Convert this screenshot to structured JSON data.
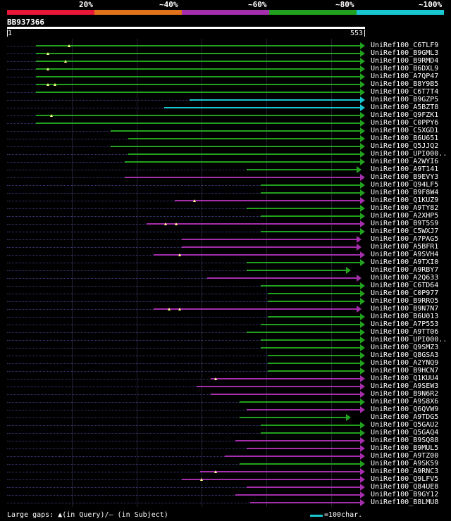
{
  "colors": {
    "red": "#e8173a",
    "orange": "#e0731a",
    "purple": "#a42eab",
    "green": "#22a11e",
    "cyan": "#19c7d2"
  },
  "header": {
    "percent_labels": [
      "20%",
      "~40%",
      "~60%",
      "~80%",
      "~100%"
    ],
    "query_id": "BB937366",
    "ruler_start": "1",
    "ruler_end": "553"
  },
  "hits": [
    {
      "name": "UniRef100_C6TLF9",
      "start": 0.08,
      "end": 1.0,
      "color": "green",
      "gaps": [
        0.17
      ]
    },
    {
      "name": "UniRef100_B9GML3",
      "start": 0.08,
      "end": 1.0,
      "color": "green",
      "gaps": [
        0.11
      ]
    },
    {
      "name": "UniRef100_B9RMD4",
      "start": 0.08,
      "end": 1.0,
      "color": "green",
      "gaps": [
        0.16
      ]
    },
    {
      "name": "UniRef100_B6DXL9",
      "start": 0.08,
      "end": 1.0,
      "color": "green",
      "gaps": [
        0.11
      ]
    },
    {
      "name": "UniRef100_A7QP47",
      "start": 0.08,
      "end": 1.0,
      "color": "green",
      "gaps": []
    },
    {
      "name": "UniRef100_B8Y9B5",
      "start": 0.08,
      "end": 1.0,
      "color": "green",
      "gaps": [
        0.11,
        0.13
      ]
    },
    {
      "name": "UniRef100_C6T7T4",
      "start": 0.08,
      "end": 1.0,
      "color": "green",
      "gaps": []
    },
    {
      "name": "UniRef100_B9GZP5",
      "start": 0.51,
      "end": 1.0,
      "color": "cyan",
      "gaps": []
    },
    {
      "name": "UniRef100_A5BZT8",
      "start": 0.44,
      "end": 1.0,
      "color": "cyan",
      "gaps": []
    },
    {
      "name": "UniRef100_Q9FZK1",
      "start": 0.08,
      "end": 1.0,
      "color": "green",
      "gaps": [
        0.12
      ]
    },
    {
      "name": "UniRef100_C0PPY6",
      "start": 0.08,
      "end": 1.0,
      "color": "green",
      "gaps": []
    },
    {
      "name": "UniRef100_C5XGD1",
      "start": 0.29,
      "end": 1.0,
      "color": "green",
      "gaps": []
    },
    {
      "name": "UniRef100_B6U651",
      "start": 0.34,
      "end": 1.0,
      "color": "green",
      "gaps": []
    },
    {
      "name": "UniRef100_Q5JJQ2",
      "start": 0.29,
      "end": 1.0,
      "color": "green",
      "gaps": []
    },
    {
      "name": "UniRef100_UPI000..",
      "start": 0.34,
      "end": 1.0,
      "color": "green",
      "gaps": []
    },
    {
      "name": "UniRef100_A2WYI6",
      "start": 0.33,
      "end": 1.0,
      "color": "green",
      "gaps": []
    },
    {
      "name": "UniRef100_A9T141",
      "start": 0.67,
      "end": 0.99,
      "color": "green",
      "gaps": []
    },
    {
      "name": "UniRef100_B9EVY3",
      "start": 0.33,
      "end": 1.0,
      "color": "purple",
      "gaps": []
    },
    {
      "name": "UniRef100_Q94LF5",
      "start": 0.71,
      "end": 1.0,
      "color": "green",
      "gaps": []
    },
    {
      "name": "UniRef100_B9F8W4",
      "start": 0.71,
      "end": 1.0,
      "color": "green",
      "gaps": []
    },
    {
      "name": "UniRef100_Q1KUZ9",
      "start": 0.47,
      "end": 1.0,
      "color": "purple",
      "gaps": [
        0.52
      ]
    },
    {
      "name": "UniRef100_A9TY82",
      "start": 0.67,
      "end": 1.0,
      "color": "green",
      "gaps": []
    },
    {
      "name": "UniRef100_A2XHP5",
      "start": 0.71,
      "end": 1.0,
      "color": "green",
      "gaps": []
    },
    {
      "name": "UniRef100_B9T5S9",
      "start": 0.39,
      "end": 1.0,
      "color": "purple",
      "gaps": [
        0.44,
        0.47
      ]
    },
    {
      "name": "UniRef100_C5WXJ7",
      "start": 0.71,
      "end": 1.0,
      "color": "green",
      "gaps": []
    },
    {
      "name": "UniRef100_A7PAG5",
      "start": 0.49,
      "end": 0.99,
      "color": "purple",
      "gaps": []
    },
    {
      "name": "UniRef100_A5BFR1",
      "start": 0.49,
      "end": 0.99,
      "color": "purple",
      "gaps": []
    },
    {
      "name": "UniRef100_A9SVH4",
      "start": 0.41,
      "end": 1.0,
      "color": "purple",
      "gaps": [
        0.48
      ]
    },
    {
      "name": "UniRef100_A9TXI0",
      "start": 0.67,
      "end": 1.0,
      "color": "green",
      "gaps": []
    },
    {
      "name": "UniRef100_A9RBY7",
      "start": 0.67,
      "end": 0.96,
      "color": "green",
      "gaps": []
    },
    {
      "name": "UniRef100_A2Q633",
      "start": 0.56,
      "end": 0.99,
      "color": "purple",
      "gaps": []
    },
    {
      "name": "UniRef100_C6TD64",
      "start": 0.71,
      "end": 1.0,
      "color": "green",
      "gaps": []
    },
    {
      "name": "UniRef100_C0P977",
      "start": 0.73,
      "end": 1.0,
      "color": "green",
      "gaps": []
    },
    {
      "name": "UniRef100_B9RRO5",
      "start": 0.73,
      "end": 1.0,
      "color": "green",
      "gaps": []
    },
    {
      "name": "UniRef100_B9N7N7",
      "start": 0.41,
      "end": 0.99,
      "color": "purple",
      "gaps": [
        0.45,
        0.48
      ]
    },
    {
      "name": "UniRef100_B6U013",
      "start": 0.73,
      "end": 1.0,
      "color": "green",
      "gaps": []
    },
    {
      "name": "UniRef100_A7P553",
      "start": 0.71,
      "end": 1.0,
      "color": "green",
      "gaps": []
    },
    {
      "name": "UniRef100_A9TT06",
      "start": 0.67,
      "end": 1.0,
      "color": "green",
      "gaps": []
    },
    {
      "name": "UniRef100_UPI000..",
      "start": 0.71,
      "end": 1.0,
      "color": "green",
      "gaps": []
    },
    {
      "name": "UniRef100_Q9SMZ3",
      "start": 0.71,
      "end": 1.0,
      "color": "green",
      "gaps": []
    },
    {
      "name": "UniRef100_Q8GSA3",
      "start": 0.73,
      "end": 1.0,
      "color": "green",
      "gaps": []
    },
    {
      "name": "UniRef100_A2YNQ9",
      "start": 0.73,
      "end": 1.0,
      "color": "green",
      "gaps": []
    },
    {
      "name": "UniRef100_B9HCN7",
      "start": 0.73,
      "end": 1.0,
      "color": "green",
      "gaps": []
    },
    {
      "name": "UniRef100_Q1KUU4",
      "start": 0.57,
      "end": 1.0,
      "color": "purple",
      "gaps": [
        0.58
      ]
    },
    {
      "name": "UniRef100_A9SEW3",
      "start": 0.53,
      "end": 1.0,
      "color": "purple",
      "gaps": []
    },
    {
      "name": "UniRef100_B9N6R2",
      "start": 0.57,
      "end": 1.0,
      "color": "purple",
      "gaps": []
    },
    {
      "name": "UniRef100_A9S8X6",
      "start": 0.65,
      "end": 1.0,
      "color": "green",
      "gaps": []
    },
    {
      "name": "UniRef100_Q6QVW9",
      "start": 0.67,
      "end": 1.0,
      "color": "purple",
      "gaps": []
    },
    {
      "name": "UniRef100_A9TDG5",
      "start": 0.65,
      "end": 0.96,
      "color": "green",
      "gaps": []
    },
    {
      "name": "UniRef100_Q5GAU2",
      "start": 0.71,
      "end": 1.0,
      "color": "green",
      "gaps": []
    },
    {
      "name": "UniRef100_Q5GAQ4",
      "start": 0.71,
      "end": 1.0,
      "color": "green",
      "gaps": []
    },
    {
      "name": "UniRef100_B9SQ88",
      "start": 0.64,
      "end": 1.0,
      "color": "purple",
      "gaps": []
    },
    {
      "name": "UniRef100_B9MUL5",
      "start": 0.67,
      "end": 1.0,
      "color": "purple",
      "gaps": []
    },
    {
      "name": "UniRef100_A9TZ00",
      "start": 0.61,
      "end": 1.0,
      "color": "purple",
      "gaps": []
    },
    {
      "name": "UniRef100_A9SK59",
      "start": 0.65,
      "end": 1.0,
      "color": "green",
      "gaps": []
    },
    {
      "name": "UniRef100_A9RNC3",
      "start": 0.54,
      "end": 1.0,
      "color": "purple",
      "gaps": [
        0.58
      ]
    },
    {
      "name": "UniRef100_Q9LFV5",
      "start": 0.49,
      "end": 1.0,
      "color": "purple",
      "gaps": [
        0.54
      ]
    },
    {
      "name": "UniRef100_Q84UE8",
      "start": 0.67,
      "end": 1.0,
      "color": "purple",
      "gaps": []
    },
    {
      "name": "UniRef100_B9GY12",
      "start": 0.64,
      "end": 1.0,
      "color": "purple",
      "gaps": []
    },
    {
      "name": "UniRef100_B8LMU8",
      "start": 0.68,
      "end": 1.0,
      "color": "purple",
      "gaps": []
    }
  ],
  "footer": {
    "legend": "Large gaps: ▲(in Query)/– (in Subject)",
    "scale": "=100char."
  }
}
